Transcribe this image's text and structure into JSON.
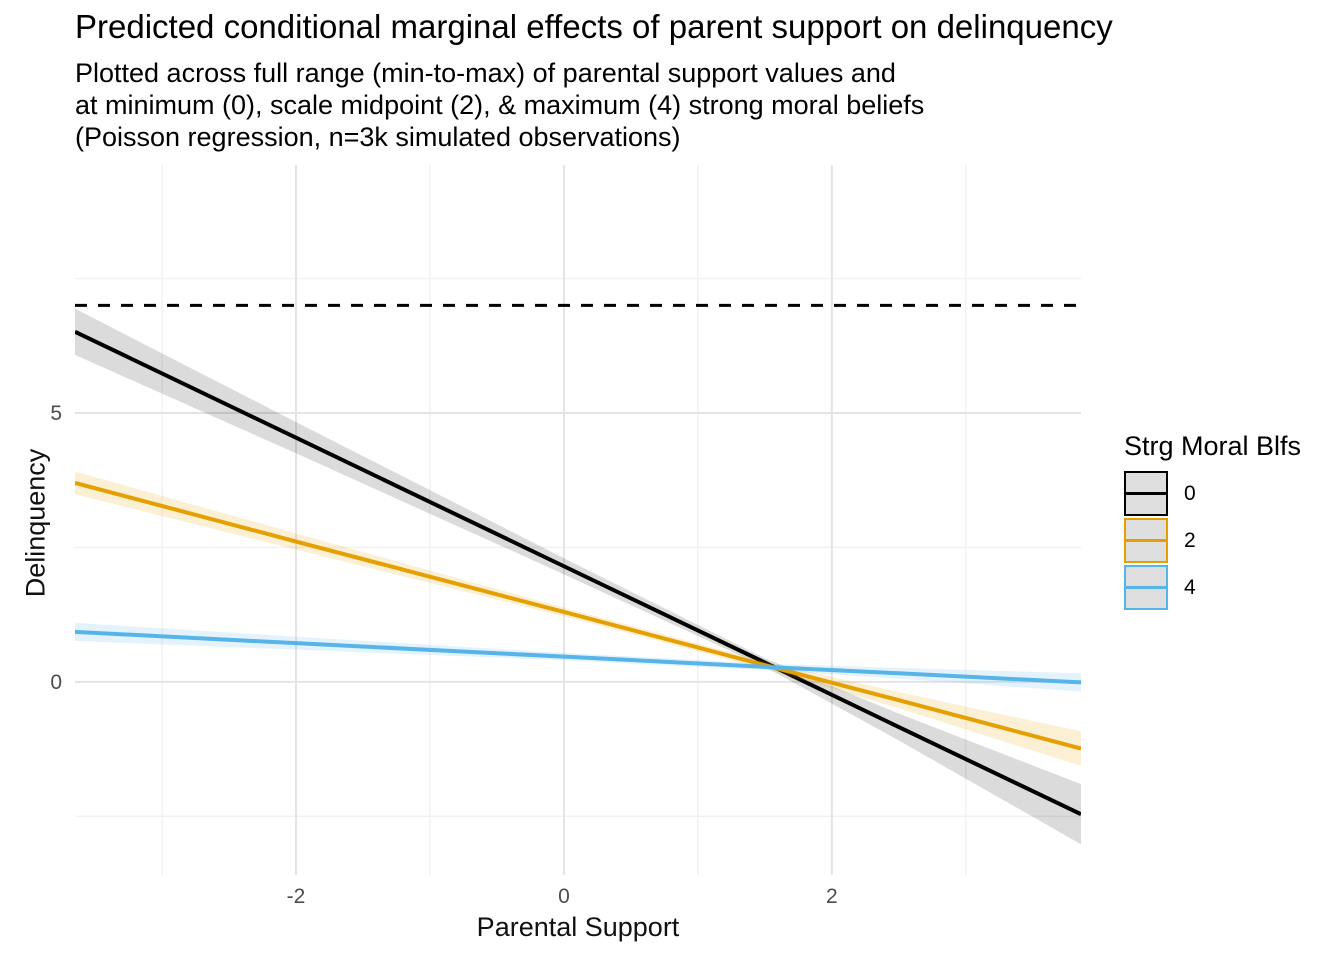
{
  "chart_data": {
    "type": "line",
    "title": "Predicted conditional marginal effects of parent support on delinquency",
    "subtitle_lines": [
      "Plotted across full range (min-to-max) of parental support values and",
      "at minimum (0), scale midpoint (2), & maximum (4) strong moral beliefs",
      "(Poisson regression, n=3k simulated observations)"
    ],
    "xlabel": "Parental Support",
    "ylabel": "Delinquency",
    "xlim": [
      -3.65,
      3.86
    ],
    "ylim": [
      -3.59,
      9.61
    ],
    "x_major_ticks": [
      {
        "value": -2,
        "label": "-2"
      },
      {
        "value": 0,
        "label": "0"
      },
      {
        "value": 2,
        "label": "2"
      }
    ],
    "x_minor_ticks": [
      -3,
      -1,
      1,
      3
    ],
    "y_major_ticks": [
      {
        "value": 0,
        "label": "0"
      },
      {
        "value": 5,
        "label": "5"
      }
    ],
    "y_minor_ticks": [
      -2.5,
      2.5,
      7.5
    ],
    "grid": {
      "major_color": "#E4E4E4",
      "minor_color": "#F2F2F2",
      "on": true
    },
    "tick_label_color": "#4D4D4D",
    "reference_line": {
      "y": 7,
      "style": "dashed",
      "color": "#000000"
    },
    "legend": {
      "title": "Strg Moral Blfs",
      "position": "right",
      "key_fill": "#DEDEDE",
      "entries": [
        {
          "label": "0",
          "color": "#000000"
        },
        {
          "label": "2",
          "color": "#E69F00"
        },
        {
          "label": "4",
          "color": "#56B4E9"
        }
      ]
    },
    "series": [
      {
        "name": "0",
        "color": "#000000",
        "ribbon_color": "rgba(0,0,0,0.14)",
        "points": [
          {
            "x": -3.65,
            "y": 6.51,
            "lo": 6.08,
            "hi": 6.94
          },
          {
            "x": -2.0,
            "y": 4.54,
            "lo": 4.25,
            "hi": 4.83
          },
          {
            "x": 0.0,
            "y": 2.15,
            "lo": 2.0,
            "hi": 2.3
          },
          {
            "x": 1.5,
            "y": 0.36,
            "lo": 0.28,
            "hi": 0.44
          },
          {
            "x": 2.5,
            "y": -0.84,
            "lo": -1.09,
            "hi": -0.59
          },
          {
            "x": 3.86,
            "y": -2.46,
            "lo": -3.02,
            "hi": -1.9
          }
        ]
      },
      {
        "name": "2",
        "color": "#E69F00",
        "ribbon_color": "rgba(230,159,0,0.17)",
        "points": [
          {
            "x": -3.65,
            "y": 3.7,
            "lo": 3.49,
            "hi": 3.91
          },
          {
            "x": -2.0,
            "y": 2.61,
            "lo": 2.46,
            "hi": 2.76
          },
          {
            "x": 0.0,
            "y": 1.3,
            "lo": 1.22,
            "hi": 1.38
          },
          {
            "x": 1.5,
            "y": 0.31,
            "lo": 0.24,
            "hi": 0.38
          },
          {
            "x": 2.5,
            "y": -0.34,
            "lo": -0.49,
            "hi": -0.19
          },
          {
            "x": 3.86,
            "y": -1.24,
            "lo": -1.56,
            "hi": -0.92
          }
        ]
      },
      {
        "name": "4",
        "color": "#56B4E9",
        "ribbon_color": "rgba(86,180,233,0.16)",
        "points": [
          {
            "x": -3.65,
            "y": 0.93,
            "lo": 0.76,
            "hi": 1.1
          },
          {
            "x": -2.0,
            "y": 0.72,
            "lo": 0.6,
            "hi": 0.84
          },
          {
            "x": 0.0,
            "y": 0.47,
            "lo": 0.4,
            "hi": 0.54
          },
          {
            "x": 1.5,
            "y": 0.28,
            "lo": 0.22,
            "hi": 0.34
          },
          {
            "x": 2.5,
            "y": 0.16,
            "lo": 0.06,
            "hi": 0.26
          },
          {
            "x": 3.86,
            "y": -0.01,
            "lo": -0.18,
            "hi": 0.16
          }
        ]
      }
    ]
  }
}
